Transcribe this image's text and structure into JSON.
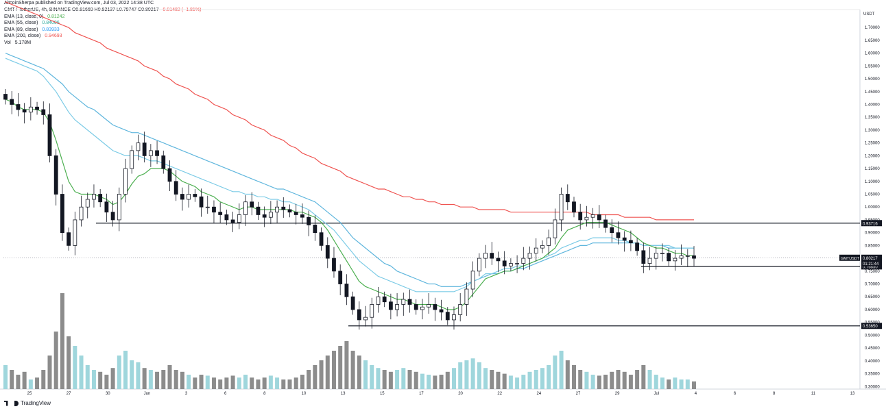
{
  "header": {
    "publisher": "AltcoinSherpa published on TradingView.com, Jul 03, 2022 14:38 UTC"
  },
  "legend": {
    "symbol": "GMT / TetherUS, 4h, BINANCE",
    "ohlc": {
      "o": "O0.81669",
      "h": "H0.82137",
      "l": "L0.79747",
      "c": "C0.80217",
      "chg": "−0.01482 (−1.81%)"
    },
    "indicators": [
      {
        "label": "EMA (13, close, 0)",
        "value": "0.81242",
        "color": "#4caf50"
      },
      {
        "label": "EMA (55, close)",
        "value": "0.84006",
        "color": "#26a69a"
      },
      {
        "label": "EMA (89, close)",
        "value": "0.83933",
        "color": "#2196f3"
      },
      {
        "label": "EMA (200, close)",
        "value": "0.94693",
        "color": "#ef5350"
      }
    ],
    "volume": {
      "label": "Vol",
      "value": "5.178M"
    }
  },
  "footer": {
    "brand": "TradingView"
  },
  "colors": {
    "ema13": "#4caf50",
    "ema55": "#7ccbe6",
    "ema89": "#5fb6dd",
    "ema200": "#ef5350",
    "candle": "#131722",
    "vol_up": "#9fd6dc",
    "vol_down": "#8c8c8c"
  },
  "chart_data": {
    "type": "candlestick",
    "title": "GMT / TetherUS, 4h, BINANCE",
    "y_axis": {
      "currency": "USDT",
      "range": [
        0.29,
        1.77
      ],
      "ticks": [
        "1.70000",
        "1.65000",
        "1.60000",
        "1.55000",
        "1.50000",
        "1.45000",
        "1.40000",
        "1.35000",
        "1.30000",
        "1.25000",
        "1.20000",
        "1.15000",
        "1.10000",
        "1.05000",
        "1.00000",
        "0.95000",
        "0.90000",
        "0.85000",
        "0.80000",
        "0.75000",
        "0.70000",
        "0.65000",
        "0.60000",
        "0.55000",
        "0.50000",
        "0.45000",
        "0.40000",
        "0.35000",
        "0.30000"
      ]
    },
    "x_axis": {
      "ticks": [
        "25",
        "27",
        "30",
        "Jun",
        "3",
        "6",
        "8",
        "10",
        "13",
        "15",
        "17",
        "20",
        "22",
        "24",
        "27",
        "29",
        "Jul",
        "4",
        "6",
        "8",
        "11",
        "13"
      ]
    },
    "horizontal_levels": [
      {
        "value": 0.93716,
        "label": "0.93716"
      },
      {
        "value": 0.7685,
        "label": "0.76850"
      },
      {
        "value": 0.5365,
        "label": "0.53650"
      }
    ],
    "last_price": {
      "symbol": "GMTUSDT",
      "value": "0.80217",
      "countdown": "01:21:44"
    },
    "close_series": [
      1.42,
      1.4,
      1.38,
      1.37,
      1.39,
      1.38,
      1.36,
      1.2,
      1.05,
      0.9,
      0.85,
      0.95,
      1.0,
      1.03,
      1.05,
      1.02,
      0.98,
      0.95,
      1.05,
      1.15,
      1.22,
      1.25,
      1.2,
      1.22,
      1.2,
      1.15,
      1.1,
      1.05,
      1.03,
      1.05,
      1.04,
      1.0,
      1.0,
      0.98,
      0.97,
      0.95,
      0.94,
      0.97,
      1.02,
      1.0,
      0.97,
      0.96,
      0.98,
      1.0,
      0.99,
      0.98,
      0.97,
      0.96,
      0.93,
      0.9,
      0.85,
      0.8,
      0.75,
      0.7,
      0.65,
      0.6,
      0.56,
      0.57,
      0.62,
      0.65,
      0.63,
      0.6,
      0.62,
      0.64,
      0.62,
      0.6,
      0.61,
      0.62,
      0.6,
      0.59,
      0.56,
      0.58,
      0.62,
      0.68,
      0.75,
      0.8,
      0.82,
      0.8,
      0.79,
      0.77,
      0.78,
      0.78,
      0.8,
      0.82,
      0.84,
      0.85,
      0.88,
      0.95,
      1.05,
      1.02,
      0.98,
      0.95,
      0.96,
      0.97,
      0.95,
      0.92,
      0.9,
      0.88,
      0.87,
      0.86,
      0.83,
      0.78,
      0.8,
      0.82,
      0.82,
      0.79,
      0.8,
      0.81,
      0.81,
      0.8
    ],
    "ema13": [
      1.42,
      1.41,
      1.39,
      1.38,
      1.38,
      1.38,
      1.37,
      1.33,
      1.26,
      1.18,
      1.1,
      1.06,
      1.05,
      1.05,
      1.05,
      1.04,
      1.03,
      1.01,
      1.02,
      1.05,
      1.09,
      1.12,
      1.13,
      1.15,
      1.15,
      1.15,
      1.14,
      1.12,
      1.1,
      1.09,
      1.08,
      1.06,
      1.05,
      1.04,
      1.02,
      1.01,
      1.0,
      0.99,
      1.0,
      1.0,
      0.99,
      0.99,
      0.99,
      0.99,
      0.99,
      0.99,
      0.98,
      0.98,
      0.97,
      0.96,
      0.94,
      0.91,
      0.87,
      0.83,
      0.79,
      0.75,
      0.71,
      0.69,
      0.68,
      0.67,
      0.66,
      0.65,
      0.64,
      0.64,
      0.63,
      0.62,
      0.62,
      0.62,
      0.62,
      0.61,
      0.6,
      0.6,
      0.61,
      0.63,
      0.66,
      0.69,
      0.72,
      0.73,
      0.74,
      0.75,
      0.75,
      0.76,
      0.77,
      0.78,
      0.79,
      0.8,
      0.82,
      0.84,
      0.88,
      0.91,
      0.92,
      0.93,
      0.94,
      0.94,
      0.94,
      0.94,
      0.93,
      0.92,
      0.91,
      0.9,
      0.88,
      0.86,
      0.85,
      0.84,
      0.84,
      0.83,
      0.82,
      0.82,
      0.81,
      0.81
    ],
    "ema55": [
      1.58,
      1.57,
      1.56,
      1.55,
      1.54,
      1.53,
      1.51,
      1.48,
      1.45,
      1.41,
      1.37,
      1.34,
      1.32,
      1.3,
      1.28,
      1.26,
      1.24,
      1.22,
      1.21,
      1.2,
      1.2,
      1.2,
      1.19,
      1.18,
      1.18,
      1.17,
      1.16,
      1.15,
      1.14,
      1.13,
      1.12,
      1.11,
      1.1,
      1.09,
      1.08,
      1.07,
      1.06,
      1.06,
      1.05,
      1.05,
      1.04,
      1.04,
      1.03,
      1.03,
      1.02,
      1.02,
      1.01,
      1.0,
      0.99,
      0.97,
      0.95,
      0.93,
      0.91,
      0.88,
      0.85,
      0.82,
      0.79,
      0.77,
      0.75,
      0.73,
      0.72,
      0.71,
      0.7,
      0.69,
      0.68,
      0.67,
      0.67,
      0.67,
      0.67,
      0.67,
      0.67,
      0.67,
      0.68,
      0.69,
      0.71,
      0.72,
      0.74,
      0.74,
      0.75,
      0.76,
      0.76,
      0.77,
      0.77,
      0.78,
      0.79,
      0.8,
      0.81,
      0.82,
      0.84,
      0.85,
      0.86,
      0.87,
      0.87,
      0.88,
      0.88,
      0.88,
      0.88,
      0.87,
      0.87,
      0.86,
      0.86,
      0.85,
      0.85,
      0.85,
      0.85,
      0.85,
      0.84,
      0.84,
      0.84,
      0.84
    ],
    "ema89": [
      1.6,
      1.59,
      1.58,
      1.57,
      1.56,
      1.55,
      1.54,
      1.52,
      1.5,
      1.48,
      1.45,
      1.43,
      1.41,
      1.39,
      1.38,
      1.36,
      1.34,
      1.32,
      1.31,
      1.3,
      1.29,
      1.29,
      1.28,
      1.27,
      1.26,
      1.25,
      1.24,
      1.23,
      1.22,
      1.21,
      1.2,
      1.19,
      1.18,
      1.17,
      1.16,
      1.15,
      1.14,
      1.13,
      1.12,
      1.11,
      1.1,
      1.09,
      1.08,
      1.07,
      1.07,
      1.06,
      1.05,
      1.04,
      1.03,
      1.02,
      1.0,
      0.98,
      0.96,
      0.94,
      0.91,
      0.88,
      0.86,
      0.84,
      0.82,
      0.8,
      0.78,
      0.77,
      0.75,
      0.74,
      0.73,
      0.72,
      0.71,
      0.7,
      0.7,
      0.69,
      0.69,
      0.69,
      0.69,
      0.7,
      0.71,
      0.72,
      0.73,
      0.74,
      0.74,
      0.75,
      0.75,
      0.76,
      0.76,
      0.77,
      0.78,
      0.79,
      0.8,
      0.81,
      0.82,
      0.83,
      0.84,
      0.85,
      0.85,
      0.86,
      0.86,
      0.86,
      0.86,
      0.86,
      0.86,
      0.86,
      0.86,
      0.85,
      0.85,
      0.85,
      0.85,
      0.84,
      0.84,
      0.84,
      0.84,
      0.84
    ],
    "ema200": [
      1.8,
      1.79,
      1.78,
      1.77,
      1.76,
      1.75,
      1.74,
      1.73,
      1.72,
      1.71,
      1.7,
      1.68,
      1.67,
      1.66,
      1.65,
      1.64,
      1.62,
      1.61,
      1.6,
      1.59,
      1.58,
      1.57,
      1.55,
      1.54,
      1.53,
      1.51,
      1.5,
      1.48,
      1.47,
      1.46,
      1.44,
      1.43,
      1.42,
      1.4,
      1.39,
      1.38,
      1.36,
      1.35,
      1.34,
      1.32,
      1.31,
      1.3,
      1.28,
      1.27,
      1.26,
      1.24,
      1.23,
      1.21,
      1.2,
      1.19,
      1.17,
      1.16,
      1.15,
      1.14,
      1.12,
      1.11,
      1.1,
      1.09,
      1.08,
      1.07,
      1.07,
      1.06,
      1.05,
      1.04,
      1.04,
      1.03,
      1.03,
      1.02,
      1.02,
      1.01,
      1.01,
      1.01,
      1.0,
      1.0,
      1.0,
      0.99,
      0.99,
      0.99,
      0.99,
      0.99,
      0.98,
      0.98,
      0.98,
      0.98,
      0.98,
      0.98,
      0.98,
      0.98,
      0.98,
      0.98,
      0.98,
      0.98,
      0.98,
      0.97,
      0.97,
      0.97,
      0.97,
      0.97,
      0.96,
      0.96,
      0.96,
      0.96,
      0.96,
      0.95,
      0.95,
      0.95,
      0.95,
      0.95,
      0.95,
      0.95
    ],
    "volume_relative": [
      0.25,
      0.2,
      0.15,
      0.18,
      0.1,
      0.12,
      0.2,
      0.35,
      0.6,
      1.0,
      0.55,
      0.45,
      0.35,
      0.25,
      0.2,
      0.18,
      0.15,
      0.22,
      0.35,
      0.4,
      0.3,
      0.28,
      0.22,
      0.2,
      0.18,
      0.2,
      0.25,
      0.2,
      0.18,
      0.15,
      0.12,
      0.15,
      0.14,
      0.12,
      0.1,
      0.12,
      0.14,
      0.12,
      0.15,
      0.12,
      0.1,
      0.12,
      0.14,
      0.12,
      0.1,
      0.1,
      0.12,
      0.15,
      0.2,
      0.25,
      0.3,
      0.35,
      0.4,
      0.45,
      0.5,
      0.4,
      0.35,
      0.3,
      0.25,
      0.22,
      0.2,
      0.18,
      0.2,
      0.22,
      0.2,
      0.18,
      0.16,
      0.15,
      0.14,
      0.15,
      0.18,
      0.22,
      0.28,
      0.3,
      0.32,
      0.28,
      0.22,
      0.2,
      0.18,
      0.16,
      0.14,
      0.12,
      0.15,
      0.18,
      0.2,
      0.22,
      0.25,
      0.35,
      0.4,
      0.3,
      0.25,
      0.2,
      0.18,
      0.15,
      0.14,
      0.15,
      0.18,
      0.2,
      0.18,
      0.15,
      0.2,
      0.25,
      0.2,
      0.15,
      0.12,
      0.1,
      0.12,
      0.1,
      0.1,
      0.08
    ]
  }
}
